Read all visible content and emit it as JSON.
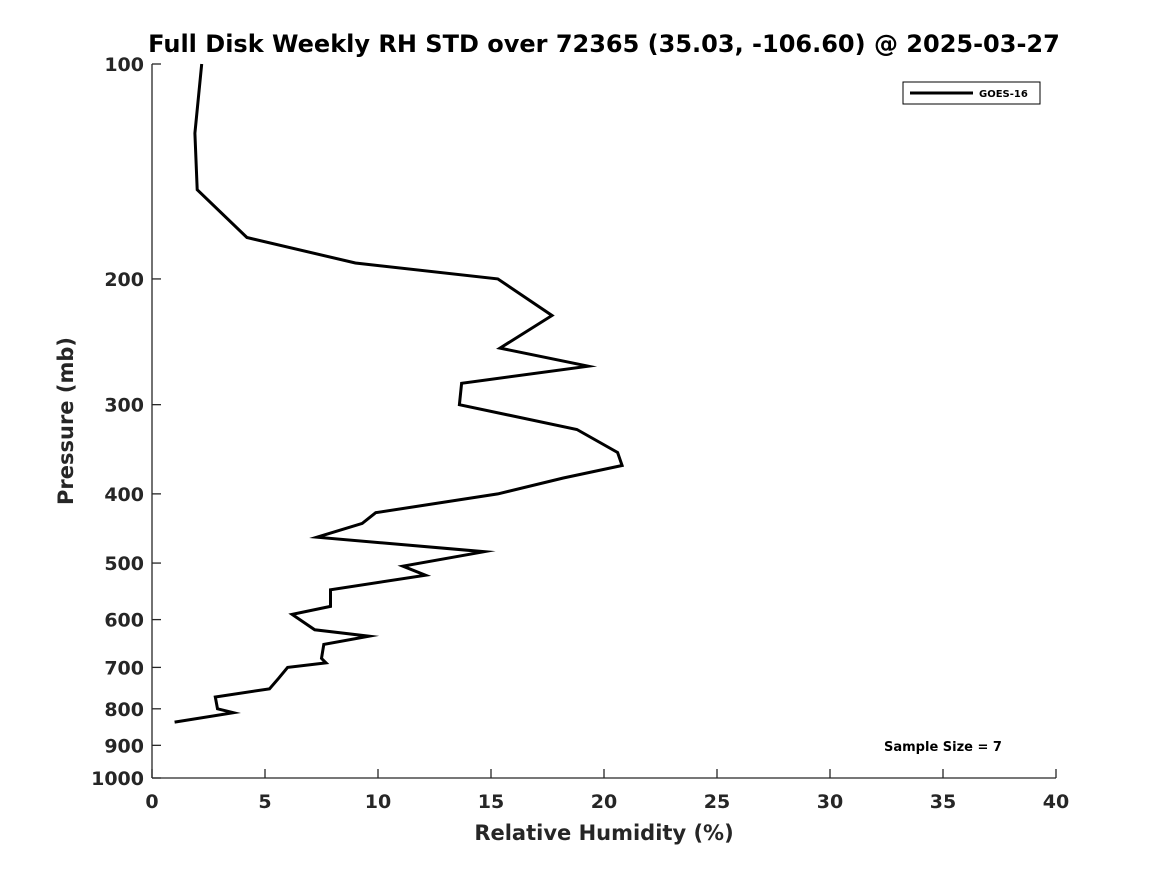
{
  "chart_data": {
    "type": "line",
    "title": "Full Disk Weekly RH STD over 72365 (35.03, -106.60) @ 2025-03-27",
    "xlabel": "Relative Humidity (%)",
    "ylabel": "Pressure (mb)",
    "xlim": [
      0,
      40
    ],
    "ylim": [
      1000,
      100
    ],
    "yscale": "log",
    "xticks": [
      "0",
      "5",
      "10",
      "15",
      "20",
      "25",
      "30",
      "35",
      "40"
    ],
    "yticks": [
      "100",
      "200",
      "300",
      "400",
      "500",
      "600",
      "700",
      "800",
      "900",
      "1000"
    ],
    "legend_position": "top-right",
    "annotation": "Sample Size = 7",
    "line_color": "#000000",
    "series": [
      {
        "name": "GOES-16",
        "x": [
          2.2,
          1.9,
          2.0,
          4.2,
          9.0,
          15.3,
          17.7,
          15.4,
          19.3,
          13.7,
          13.6,
          18.8,
          20.6,
          20.8,
          18.2,
          15.3,
          9.9,
          9.3,
          7.3,
          14.7,
          11.1,
          12.1,
          7.9,
          7.9,
          6.2,
          7.2,
          9.6,
          7.6,
          7.5,
          7.7,
          6.0,
          5.6,
          5.2,
          2.8,
          2.9,
          3.6,
          1.0
        ],
        "y": [
          100,
          125,
          150,
          175,
          190,
          200,
          225,
          250,
          265,
          280,
          300,
          325,
          350,
          365,
          380,
          400,
          425,
          440,
          460,
          482,
          505,
          520,
          545,
          575,
          590,
          620,
          633,
          650,
          680,
          690,
          700,
          725,
          750,
          770,
          800,
          810,
          835
        ]
      }
    ]
  }
}
